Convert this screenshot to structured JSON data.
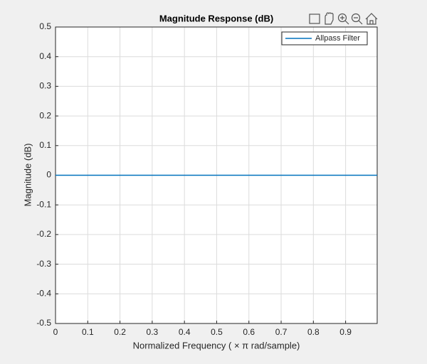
{
  "chart_data": {
    "type": "line",
    "title": "Magnitude Response (dB)",
    "xlabel": "Normalized  Frequency  ( × π  rad/sample)",
    "ylabel": "Magnitude (dB)",
    "x": [
      0,
      0.998
    ],
    "series": [
      {
        "name": "Allpass Filter",
        "color": "#0072bd",
        "values": [
          0,
          0
        ]
      }
    ],
    "xlim": [
      0,
      0.998
    ],
    "xticks": [
      0,
      0.1,
      0.2,
      0.3,
      0.4,
      0.5,
      0.6,
      0.7,
      0.8,
      0.9
    ],
    "ylim": [
      -0.5,
      0.5
    ],
    "yticks": [
      -0.5,
      -0.4,
      -0.3,
      -0.2,
      -0.1,
      0,
      0.1,
      0.2,
      0.3,
      0.4,
      0.5
    ],
    "grid": true,
    "legend": "top-right"
  }
}
